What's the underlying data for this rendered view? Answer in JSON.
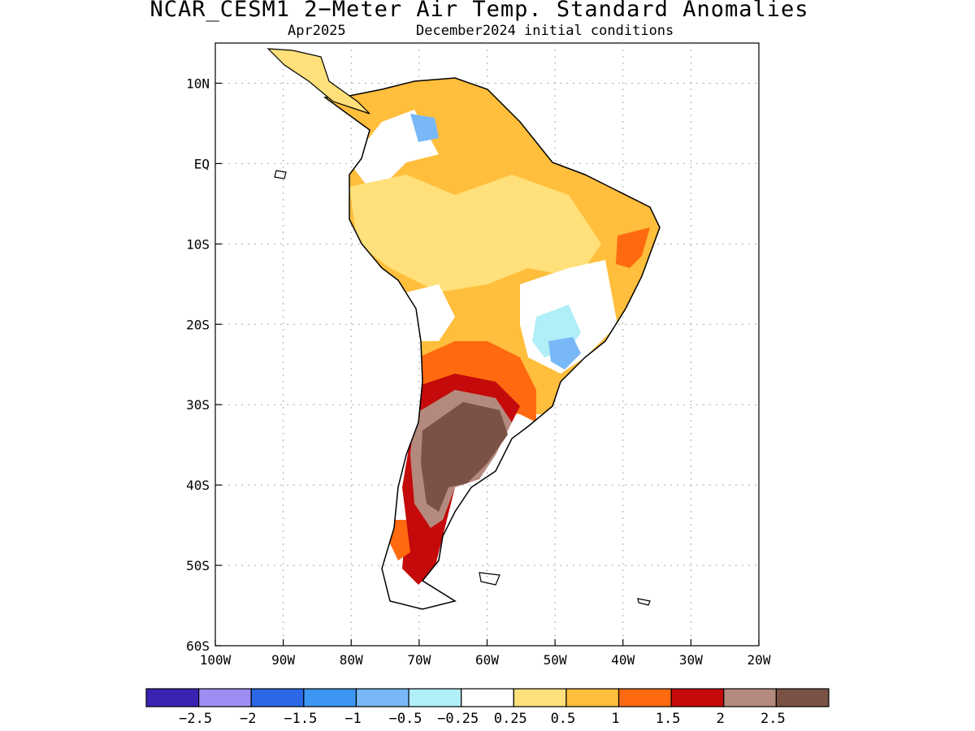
{
  "title": "NCAR_CESM1 2−Meter Air Temp. Standard Anomalies",
  "subtitle_month": "Apr2025",
  "subtitle_init": "December2024 initial conditions",
  "map": {
    "lon_range": [
      -100,
      -20
    ],
    "lat_range": [
      -60,
      15
    ],
    "lon_ticks": [
      "100W",
      "90W",
      "80W",
      "70W",
      "60W",
      "50W",
      "40W",
      "30W",
      "20W"
    ],
    "lat_ticks": [
      "10N",
      "EQ",
      "10S",
      "20S",
      "30S",
      "40S",
      "50S",
      "60S"
    ],
    "grid": "dotted",
    "land_outline": "black"
  },
  "colorbar": {
    "colors": [
      "#3b22b4",
      "#9e8ef4",
      "#2a68e8",
      "#3d96f2",
      "#78b8f7",
      "#b0eef8",
      "#ffffff",
      "#ffe07a",
      "#ffbe3c",
      "#ff6a10",
      "#c40a0a",
      "#b58a7e",
      "#7a5246"
    ],
    "labels": [
      "−2.5",
      "−2",
      "−1.5",
      "−1",
      "−0.5",
      "−0.25",
      "0.25",
      "0.5",
      "1",
      "1.5",
      "2",
      "2.5"
    ]
  },
  "anomaly_regions": [
    {
      "name": "orange-positive-broad",
      "level": "1"
    },
    {
      "name": "red-southern-cone",
      "level": "2"
    },
    {
      "name": "brown-argentina",
      "level": "2.5"
    }
  ]
}
